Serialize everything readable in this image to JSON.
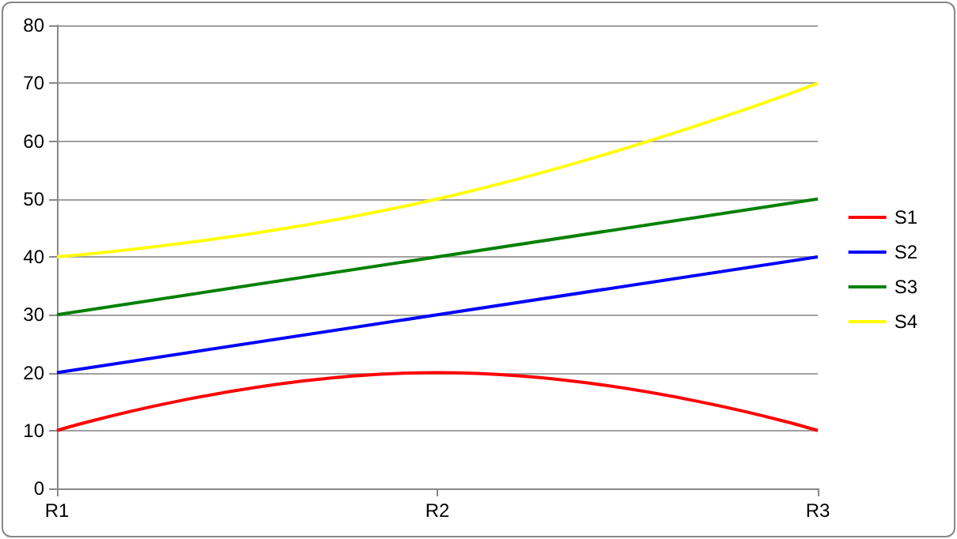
{
  "chart_data": {
    "type": "line",
    "categories": [
      "R1",
      "R2",
      "R3"
    ],
    "series": [
      {
        "name": "S1",
        "color": "#ff0000",
        "values": [
          10,
          20,
          10
        ]
      },
      {
        "name": "S2",
        "color": "#0000ff",
        "values": [
          20,
          30,
          40
        ]
      },
      {
        "name": "S3",
        "color": "#008000",
        "values": [
          30,
          40,
          50
        ]
      },
      {
        "name": "S4",
        "color": "#ffff00",
        "values": [
          40,
          50,
          70
        ]
      }
    ],
    "ylim": [
      0,
      80
    ],
    "yticks": [
      0,
      10,
      20,
      30,
      40,
      50,
      60,
      70,
      80
    ],
    "grid": "y",
    "legend": "right",
    "marker": "none",
    "line_style": "solid"
  }
}
